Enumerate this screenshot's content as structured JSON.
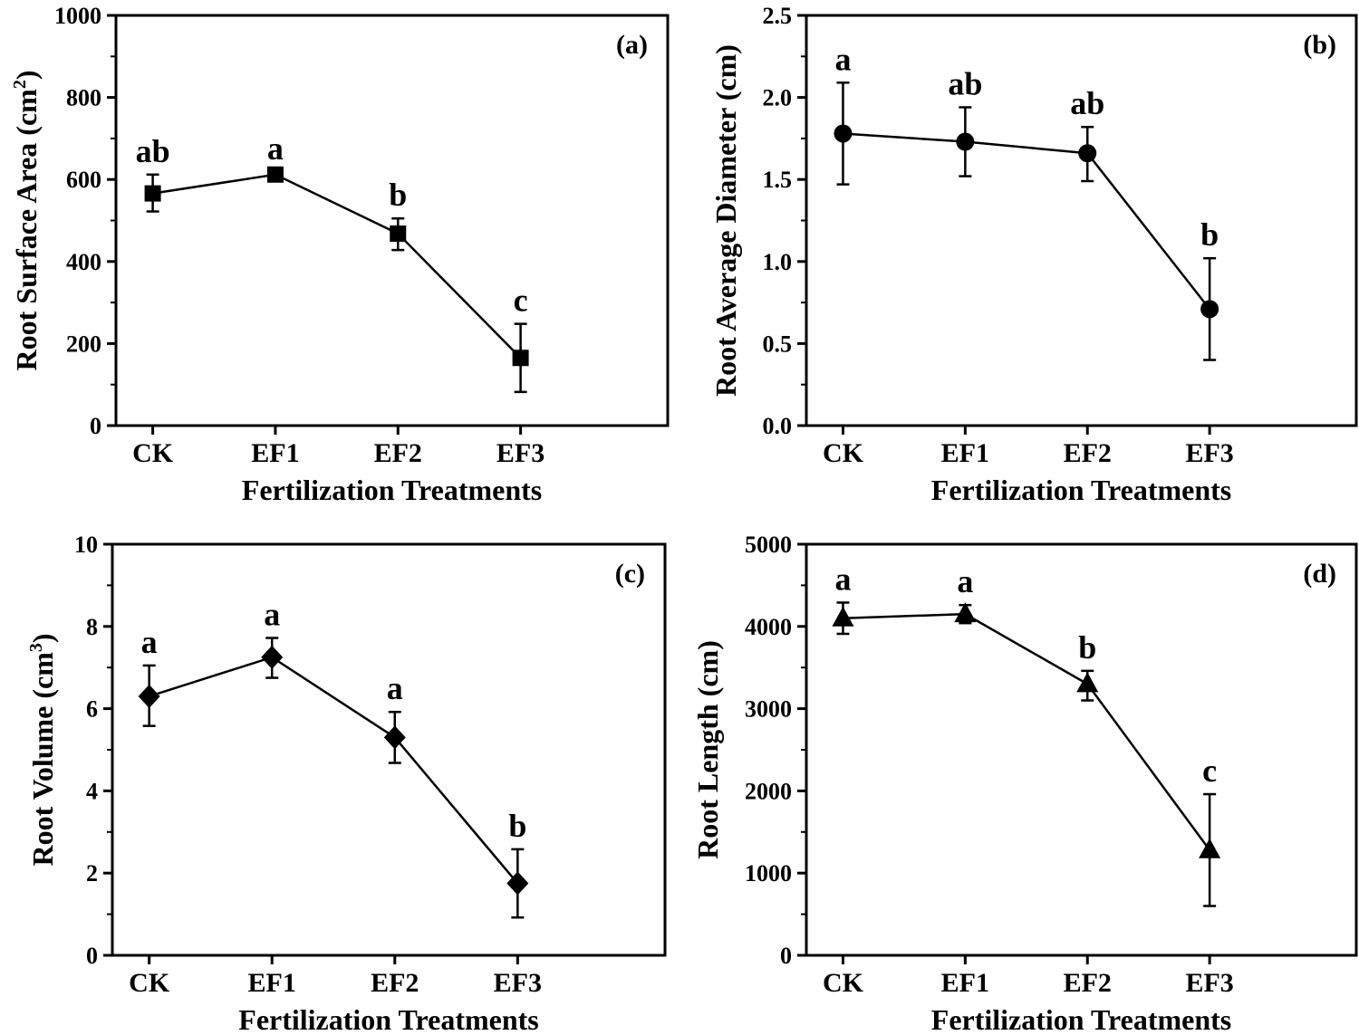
{
  "chart_data": [
    {
      "type": "line",
      "panel_tag": "(a)",
      "categories": [
        "CK",
        "EF1",
        "EF2",
        "EF3"
      ],
      "values": [
        566,
        612,
        468,
        165
      ],
      "errors_upper": [
        612,
        618,
        505,
        248
      ],
      "errors_lower": [
        522,
        604,
        428,
        82
      ],
      "significance": [
        "ab",
        "a",
        "b",
        "c"
      ],
      "marker": "square",
      "xlabel": "Fertilization Treatments",
      "ylabel": "Root Surface Area (cm",
      "ylabel_sup": "2",
      "ylabel_end": ")",
      "ylim": [
        0,
        1000
      ],
      "yticks": [
        0,
        200,
        400,
        600,
        800,
        1000
      ],
      "ytick_labels": [
        "0",
        "200",
        "400",
        "600",
        "800",
        "1000"
      ]
    },
    {
      "type": "line",
      "panel_tag": "(b)",
      "categories": [
        "CK",
        "EF1",
        "EF2",
        "EF3"
      ],
      "values": [
        1.78,
        1.73,
        1.66,
        0.71
      ],
      "errors_upper": [
        2.09,
        1.94,
        1.82,
        1.02
      ],
      "errors_lower": [
        1.47,
        1.52,
        1.49,
        0.4
      ],
      "significance": [
        "a",
        "ab",
        "ab",
        "b"
      ],
      "marker": "circle",
      "xlabel": "Fertilization Treatments",
      "ylabel": "Root Average Diameter (cm)",
      "ylabel_sup": "",
      "ylabel_end": "",
      "ylim": [
        0,
        2.5
      ],
      "yticks": [
        0,
        0.5,
        1.0,
        1.5,
        2.0,
        2.5
      ],
      "ytick_labels": [
        "0.0",
        "0.5",
        "1.0",
        "1.5",
        "2.0",
        "2.5"
      ]
    },
    {
      "type": "line",
      "panel_tag": "(c)",
      "categories": [
        "CK",
        "EF1",
        "EF2",
        "EF3"
      ],
      "values": [
        6.3,
        7.25,
        5.3,
        1.75
      ],
      "errors_upper": [
        7.05,
        7.72,
        5.92,
        2.58
      ],
      "errors_lower": [
        5.58,
        6.75,
        4.68,
        0.92
      ],
      "significance": [
        "a",
        "a",
        "a",
        "b"
      ],
      "marker": "diamond",
      "xlabel": "Fertilization Treatments",
      "ylabel": "Root Volume (cm",
      "ylabel_sup": "3",
      "ylabel_end": ")",
      "ylim": [
        0,
        10
      ],
      "yticks": [
        0,
        2,
        4,
        6,
        8,
        10
      ],
      "ytick_labels": [
        "0",
        "2",
        "4",
        "6",
        "8",
        "10"
      ]
    },
    {
      "type": "line",
      "panel_tag": "(d)",
      "categories": [
        "CK",
        "EF1",
        "EF2",
        "EF3"
      ],
      "values": [
        4100,
        4150,
        3300,
        1280
      ],
      "errors_upper": [
        4290,
        4260,
        3460,
        1960
      ],
      "errors_lower": [
        3910,
        4040,
        3100,
        600
      ],
      "significance": [
        "a",
        "a",
        "b",
        "c"
      ],
      "marker": "triangle",
      "xlabel": "Fertilization Treatments",
      "ylabel": "Root Length (cm)",
      "ylabel_sup": "",
      "ylabel_end": "",
      "ylim": [
        0,
        5000
      ],
      "yticks": [
        0,
        1000,
        2000,
        3000,
        4000,
        5000
      ],
      "ytick_labels": [
        "0",
        "1000",
        "2000",
        "3000",
        "4000",
        "5000"
      ]
    }
  ]
}
